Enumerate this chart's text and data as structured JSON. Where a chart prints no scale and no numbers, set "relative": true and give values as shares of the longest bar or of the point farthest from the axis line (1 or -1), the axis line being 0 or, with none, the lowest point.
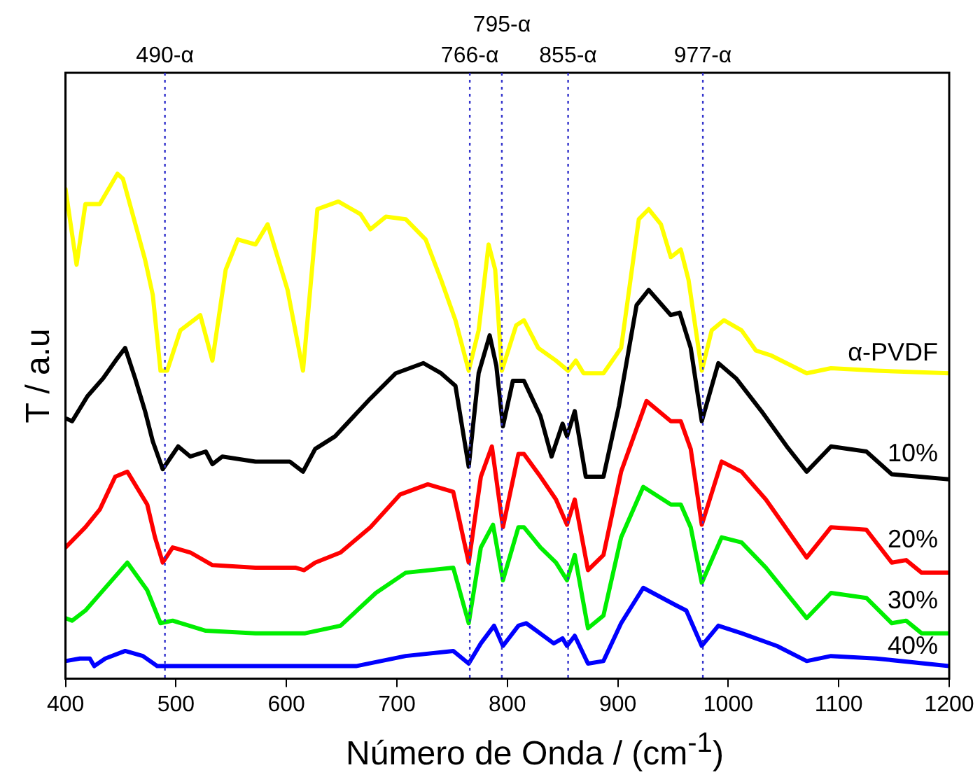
{
  "chart_data": {
    "type": "line",
    "xlabel": "Número de Onda / (cm$^{-1}$)",
    "ylabel": "T / a.u",
    "relative": true,
    "xlim": [
      400,
      1200
    ],
    "xticks": [
      400,
      500,
      600,
      700,
      800,
      900,
      1000,
      1100,
      1200
    ],
    "marker": "none",
    "line_style": "solid",
    "series": [
      {
        "name": "α-PVDF",
        "color": "#ffff00",
        "x": [
          400,
          410,
          418,
          431,
          447,
          452,
          472,
          479,
          486,
          492,
          504,
          522,
          533,
          545,
          556,
          572,
          583,
          601,
          615,
          628,
          647,
          667,
          676,
          690,
          708,
          726,
          740,
          753,
          765,
          774,
          783,
          789,
          795,
          808,
          815,
          828,
          844,
          855,
          862,
          869,
          887,
          903,
          919,
          928,
          939,
          948,
          957,
          964,
          976,
          985,
          996,
          1012,
          1025,
          1039,
          1071,
          1093,
          1134,
          1200
        ],
        "values": [
          0.97,
          0.82,
          0.94,
          0.94,
          1,
          0.99,
          0.83,
          0.76,
          0.61,
          0.61,
          0.69,
          0.72,
          0.63,
          0.81,
          0.87,
          0.86,
          0.9,
          0.77,
          0.61,
          0.93,
          0.945,
          0.92,
          0.89,
          0.915,
          0.91,
          0.87,
          0.79,
          0.71,
          0.61,
          0.69,
          0.86,
          0.81,
          0.61,
          0.7,
          0.71,
          0.655,
          0.63,
          0.61,
          0.63,
          0.605,
          0.605,
          0.655,
          0.91,
          0.93,
          0.9,
          0.835,
          0.85,
          0.79,
          0.61,
          0.69,
          0.71,
          0.69,
          0.65,
          0.64,
          0.605,
          0.615,
          0.61,
          0.605
        ]
      },
      {
        "name": "10%",
        "color": "#000000",
        "x": [
          401,
          406,
          420,
          434,
          447,
          454,
          463,
          472,
          479,
          488,
          502,
          513,
          527,
          533,
          542,
          572,
          603,
          615,
          626,
          644,
          676,
          699,
          724,
          740,
          753,
          765,
          774,
          784,
          790,
          796,
          805,
          815,
          830,
          840,
          850,
          854,
          861,
          871,
          887,
          901,
          917,
          928,
          948,
          956,
          966,
          976,
          991,
          1007,
          1030,
          1053,
          1071,
          1093,
          1125,
          1148,
          1200
        ],
        "values": [
          0.515,
          0.51,
          0.56,
          0.595,
          0.635,
          0.655,
          0.595,
          0.53,
          0.47,
          0.415,
          0.46,
          0.44,
          0.45,
          0.425,
          0.44,
          0.43,
          0.43,
          0.41,
          0.455,
          0.48,
          0.555,
          0.605,
          0.625,
          0.605,
          0.58,
          0.42,
          0.605,
          0.68,
          0.62,
          0.5,
          0.59,
          0.59,
          0.52,
          0.44,
          0.505,
          0.48,
          0.53,
          0.4,
          0.4,
          0.54,
          0.74,
          0.77,
          0.72,
          0.725,
          0.655,
          0.51,
          0.625,
          0.595,
          0.53,
          0.46,
          0.41,
          0.46,
          0.45,
          0.405,
          0.395
        ]
      },
      {
        "name": "20%",
        "color": "#ff0000",
        "x": [
          400,
          418,
          431,
          445,
          456,
          474,
          481,
          488,
          497,
          513,
          533,
          572,
          608,
          616,
          626,
          649,
          676,
          703,
          728,
          751,
          765,
          776,
          786,
          796,
          810,
          815,
          830,
          844,
          854,
          861,
          873,
          887,
          903,
          926,
          948,
          957,
          966,
          976,
          994,
          1012,
          1034,
          1071,
          1093,
          1125,
          1148,
          1161,
          1175,
          1200
        ],
        "values": [
          0.26,
          0.3,
          0.335,
          0.4,
          0.41,
          0.345,
          0.28,
          0.23,
          0.26,
          0.25,
          0.225,
          0.22,
          0.22,
          0.215,
          0.23,
          0.25,
          0.3,
          0.365,
          0.385,
          0.37,
          0.23,
          0.4,
          0.46,
          0.3,
          0.445,
          0.445,
          0.4,
          0.355,
          0.305,
          0.355,
          0.215,
          0.245,
          0.41,
          0.55,
          0.51,
          0.51,
          0.455,
          0.305,
          0.43,
          0.41,
          0.355,
          0.24,
          0.3,
          0.295,
          0.23,
          0.235,
          0.21,
          0.21
        ]
      },
      {
        "name": "30%",
        "color": "#00ee00",
        "x": [
          400,
          406,
          418,
          434,
          456,
          474,
          486,
          497,
          527,
          572,
          617,
          649,
          681,
          708,
          751,
          765,
          776,
          787,
          796,
          810,
          815,
          830,
          844,
          854,
          861,
          873,
          887,
          903,
          923,
          948,
          957,
          966,
          976,
          994,
          1012,
          1034,
          1071,
          1093,
          1125,
          1148,
          1161,
          1175,
          1200
        ],
        "values": [
          0.12,
          0.115,
          0.135,
          0.175,
          0.23,
          0.175,
          0.11,
          0.115,
          0.095,
          0.09,
          0.09,
          0.105,
          0.17,
          0.21,
          0.22,
          0.11,
          0.26,
          0.305,
          0.195,
          0.3,
          0.3,
          0.26,
          0.23,
          0.195,
          0.245,
          0.1,
          0.125,
          0.28,
          0.38,
          0.345,
          0.345,
          0.3,
          0.19,
          0.28,
          0.27,
          0.22,
          0.12,
          0.17,
          0.16,
          0.11,
          0.115,
          0.09,
          0.09
        ]
      },
      {
        "name": "40%",
        "color": "#0000ff",
        "x": [
          400,
          413,
          422,
          426,
          436,
          454,
          470,
          483,
          572,
          663,
          708,
          751,
          765,
          776,
          788,
          796,
          810,
          817,
          842,
          850,
          854,
          861,
          873,
          887,
          903,
          923,
          953,
          962,
          976,
          991,
          1012,
          1044,
          1071,
          1093,
          1134,
          1200
        ],
        "values": [
          0.035,
          0.04,
          0.04,
          0.025,
          0.04,
          0.055,
          0.045,
          0.025,
          0.025,
          0.025,
          0.045,
          0.055,
          0.03,
          0.07,
          0.105,
          0.065,
          0.105,
          0.11,
          0.07,
          0.08,
          0.065,
          0.085,
          0.03,
          0.035,
          0.11,
          0.18,
          0.145,
          0.135,
          0.065,
          0.105,
          0.09,
          0.065,
          0.035,
          0.045,
          0.04,
          0.025
        ]
      }
    ],
    "ref_lines": [
      {
        "axis": "x",
        "value": 490,
        "label": "490-α",
        "color": "#3333cc",
        "line_style": "dotted"
      },
      {
        "axis": "x",
        "value": 766,
        "label": "766-α",
        "color": "#3333cc",
        "line_style": "dotted"
      },
      {
        "axis": "x",
        "value": 795,
        "label": "795-α",
        "color": "#3333cc",
        "line_style": "dotted"
      },
      {
        "axis": "x",
        "value": 855,
        "label": "855-α",
        "color": "#3333cc",
        "line_style": "dotted"
      },
      {
        "axis": "x",
        "value": 977,
        "label": "977-α",
        "color": "#3333cc",
        "line_style": "dotted"
      }
    ]
  }
}
